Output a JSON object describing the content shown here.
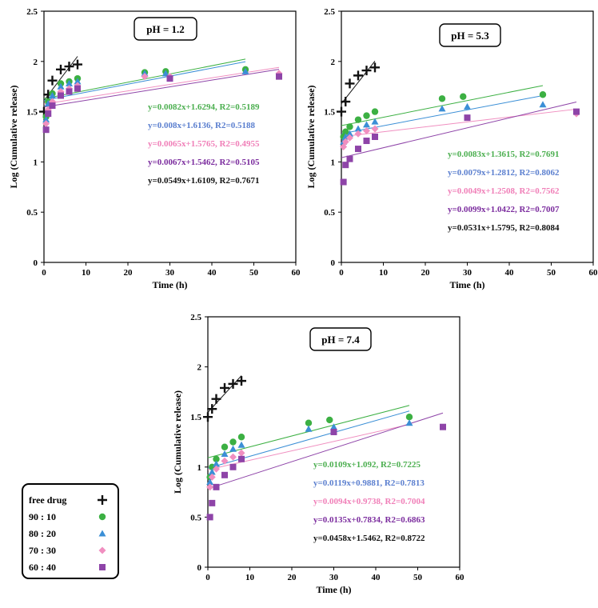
{
  "colors": {
    "free_drug": "#111111",
    "90:10": "#3cb043",
    "80:20": "#3b8fd6",
    "70:30": "#f08fc0",
    "60:40": "#8e44a8",
    "eq_free": "#111111",
    "eq_90": "#4caf50",
    "eq_80": "#5b7fcf",
    "eq_70": "#f07fb8",
    "eq_60": "#7b2c9e"
  },
  "legend": {
    "entries": [
      {
        "label": "free drug",
        "series": "free drug",
        "marker": "plus-marker"
      },
      {
        "label": "90 : 10",
        "series": "90:10",
        "marker": "circle-marker"
      },
      {
        "label": "80 : 20",
        "series": "80:20",
        "marker": "triangle-marker"
      },
      {
        "label": "70 : 30",
        "series": "70:30",
        "marker": "diamond-marker"
      },
      {
        "label": "60 : 40",
        "series": "60:40",
        "marker": "square-marker"
      }
    ]
  },
  "chart_data": [
    {
      "type": "scatter",
      "title": "pH = 1.2",
      "xlabel": "Time (h)",
      "ylabel": "Log (Cumulative release)",
      "xlim": [
        0,
        60
      ],
      "ylim": [
        0,
        2.5
      ],
      "xticks": [
        "0",
        "10",
        "20",
        "30",
        "40",
        "50",
        "60"
      ],
      "yticks": [
        "0",
        "0.5",
        "1",
        "1.5",
        "2",
        "2.5"
      ],
      "series": [
        {
          "name": "free drug",
          "x": [
            0,
            1,
            2,
            4,
            6,
            8
          ],
          "y": [
            1.5,
            1.67,
            1.81,
            1.92,
            1.95,
            1.97
          ],
          "fit": {
            "slope": 0.0549,
            "intercept": 1.6109,
            "x_range": [
              0,
              8
            ]
          }
        },
        {
          "name": "90:10",
          "x": [
            0.5,
            1,
            2,
            4,
            6,
            8,
            24,
            29,
            48
          ],
          "y": [
            1.45,
            1.6,
            1.68,
            1.78,
            1.8,
            1.83,
            1.89,
            1.9,
            1.92
          ],
          "fit": {
            "slope": 0.0082,
            "intercept": 1.6294,
            "x_range": [
              0,
              48
            ]
          }
        },
        {
          "name": "80:20",
          "x": [
            0.5,
            1,
            2,
            4,
            6,
            8,
            24,
            29,
            48
          ],
          "y": [
            1.42,
            1.58,
            1.66,
            1.75,
            1.78,
            1.8,
            1.88,
            1.88,
            1.9
          ],
          "fit": {
            "slope": 0.008,
            "intercept": 1.6136,
            "x_range": [
              0,
              48
            ]
          }
        },
        {
          "name": "70:30",
          "x": [
            0.5,
            1,
            2,
            4,
            6,
            8,
            24,
            30,
            56
          ],
          "y": [
            1.38,
            1.52,
            1.6,
            1.7,
            1.73,
            1.76,
            1.85,
            1.85,
            1.88
          ],
          "fit": {
            "slope": 0.0065,
            "intercept": 1.5765,
            "x_range": [
              0,
              56
            ]
          }
        },
        {
          "name": "60:40",
          "x": [
            0.5,
            1,
            2,
            4,
            6,
            8,
            30,
            56
          ],
          "y": [
            1.32,
            1.48,
            1.56,
            1.66,
            1.7,
            1.73,
            1.83,
            1.85
          ],
          "fit": {
            "slope": 0.0067,
            "intercept": 1.5462,
            "x_range": [
              0,
              56
            ]
          }
        }
      ],
      "equations": [
        {
          "text": "y=0.0082x+1.6294, R2=0.5189",
          "series": "90:10"
        },
        {
          "text": "y=0.008x+1.6136, R2=0.5188",
          "series": "80:20"
        },
        {
          "text": "y=0.0065x+1.5765, R2=0.4955",
          "series": "70:30"
        },
        {
          "text": "y=0.0067x+1.5462, R2=0.5105",
          "series": "60:40"
        },
        {
          "text": "y=0.0549x+1.6109, R2=0.7671",
          "series": "free drug"
        }
      ]
    },
    {
      "type": "scatter",
      "title": "pH = 5.3",
      "xlabel": "Time (h)",
      "ylabel": "Log (Cumulative release)",
      "xlim": [
        0,
        60
      ],
      "ylim": [
        0,
        2.5
      ],
      "xticks": [
        "0",
        "10",
        "20",
        "30",
        "40",
        "50",
        "60"
      ],
      "yticks": [
        "0",
        "0.5",
        "1",
        "1.5",
        "2",
        "2.5"
      ],
      "series": [
        {
          "name": "free drug",
          "x": [
            0,
            1,
            2,
            4,
            6,
            8
          ],
          "y": [
            1.5,
            1.6,
            1.78,
            1.86,
            1.91,
            1.94
          ],
          "fit": {
            "slope": 0.0531,
            "intercept": 1.5795,
            "x_range": [
              0,
              8
            ]
          }
        },
        {
          "name": "90:10",
          "x": [
            0.5,
            1,
            2,
            4,
            6,
            8,
            24,
            29,
            48
          ],
          "y": [
            1.25,
            1.3,
            1.35,
            1.42,
            1.46,
            1.5,
            1.63,
            1.65,
            1.67
          ],
          "fit": {
            "slope": 0.0083,
            "intercept": 1.3615,
            "x_range": [
              0,
              48
            ]
          }
        },
        {
          "name": "80:20",
          "x": [
            0.5,
            1,
            2,
            4,
            6,
            8,
            24,
            30,
            48
          ],
          "y": [
            1.2,
            1.25,
            1.28,
            1.33,
            1.37,
            1.4,
            1.53,
            1.55,
            1.57
          ],
          "fit": {
            "slope": 0.0079,
            "intercept": 1.2812,
            "x_range": [
              0,
              48
            ]
          }
        },
        {
          "name": "70:30",
          "x": [
            0.5,
            1,
            2,
            4,
            6,
            8,
            56
          ],
          "y": [
            1.15,
            1.2,
            1.24,
            1.28,
            1.31,
            1.33,
            1.48
          ],
          "fit": {
            "slope": 0.0049,
            "intercept": 1.2508,
            "x_range": [
              0,
              56
            ]
          }
        },
        {
          "name": "60:40",
          "x": [
            0.5,
            1,
            2,
            4,
            6,
            8,
            30,
            56
          ],
          "y": [
            0.8,
            0.97,
            1.03,
            1.13,
            1.21,
            1.25,
            1.44,
            1.5
          ],
          "fit": {
            "slope": 0.0099,
            "intercept": 1.0422,
            "x_range": [
              0,
              56
            ]
          }
        }
      ],
      "equations": [
        {
          "text": "y=0.0083x+1.3615, R2=0.7691",
          "series": "90:10"
        },
        {
          "text": "y=0.0079x+1.2812, R2=0.8062",
          "series": "80:20"
        },
        {
          "text": "y=0.0049x+1.2508, R2=0.7562",
          "series": "70:30"
        },
        {
          "text": "y=0.0099x+1.0422, R2=0.7007",
          "series": "60:40"
        },
        {
          "text": "y=0.0531x+1.5795, R2=0.8084",
          "series": "free drug"
        }
      ]
    },
    {
      "type": "scatter",
      "title": "pH = 7.4",
      "xlabel": "Time (h)",
      "ylabel": "Log (Cumulative release)",
      "xlim": [
        0,
        60
      ],
      "ylim": [
        0,
        2.5
      ],
      "xticks": [
        "0",
        "10",
        "20",
        "30",
        "40",
        "50",
        "60"
      ],
      "yticks": [
        "0",
        "0.5",
        "1",
        "1.5",
        "2",
        "2.5"
      ],
      "series": [
        {
          "name": "free drug",
          "x": [
            0,
            1,
            2,
            4,
            6,
            8
          ],
          "y": [
            1.5,
            1.58,
            1.68,
            1.79,
            1.83,
            1.86
          ],
          "fit": {
            "slope": 0.0458,
            "intercept": 1.5462,
            "x_range": [
              0,
              8
            ]
          }
        },
        {
          "name": "90:10",
          "x": [
            0.5,
            1,
            2,
            4,
            6,
            8,
            24,
            29,
            48
          ],
          "y": [
            0.9,
            1.0,
            1.08,
            1.2,
            1.25,
            1.3,
            1.44,
            1.47,
            1.5
          ],
          "fit": {
            "slope": 0.0109,
            "intercept": 1.092,
            "x_range": [
              0,
              48
            ]
          }
        },
        {
          "name": "80:20",
          "x": [
            0.5,
            1,
            2,
            4,
            6,
            8,
            24,
            30,
            48
          ],
          "y": [
            0.85,
            0.95,
            1.03,
            1.13,
            1.18,
            1.22,
            1.38,
            1.4,
            1.44
          ],
          "fit": {
            "slope": 0.0119,
            "intercept": 0.9881,
            "x_range": [
              0,
              48
            ]
          }
        },
        {
          "name": "70:30",
          "x": [
            0.5,
            1,
            2,
            4,
            6,
            8
          ],
          "y": [
            0.8,
            0.9,
            0.98,
            1.06,
            1.1,
            1.14
          ],
          "fit": {
            "slope": 0.0094,
            "intercept": 0.9738,
            "x_range": [
              0,
              48
            ]
          }
        },
        {
          "name": "60:40",
          "x": [
            0.5,
            1,
            2,
            4,
            6,
            8,
            30,
            56
          ],
          "y": [
            0.5,
            0.64,
            0.8,
            0.92,
            1.0,
            1.08,
            1.35,
            1.4
          ],
          "fit": {
            "slope": 0.0135,
            "intercept": 0.7834,
            "x_range": [
              0,
              56
            ]
          }
        }
      ],
      "equations": [
        {
          "text": "y=0.0109x+1.092, R2=0.7225",
          "series": "90:10"
        },
        {
          "text": "y=0.0119x+0.9881, R2=0.7813",
          "series": "80:20"
        },
        {
          "text": "y=0.0094x+0.9738, R2=0.7004",
          "series": "70:30"
        },
        {
          "text": "y=0.0135x+0.7834, R2=0.6863",
          "series": "60:40"
        },
        {
          "text": "y=0.0458x+1.5462, R2=0.8722",
          "series": "free drug"
        }
      ]
    }
  ]
}
